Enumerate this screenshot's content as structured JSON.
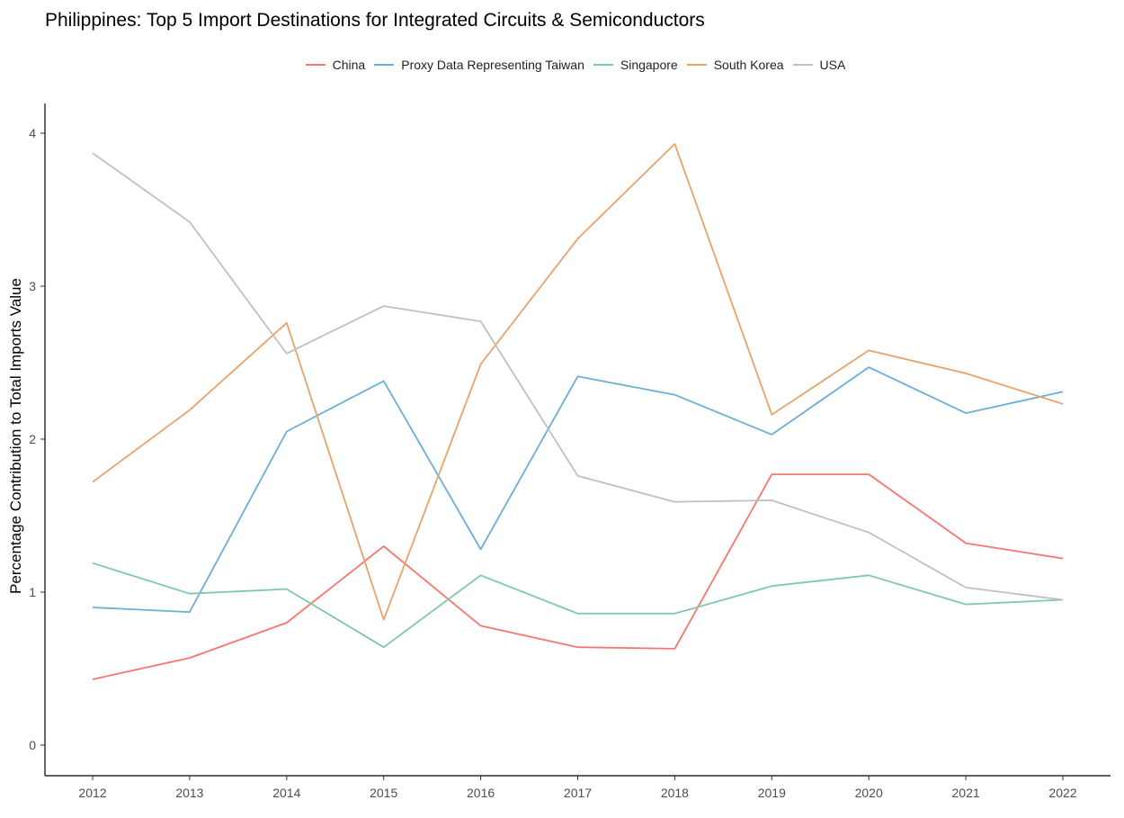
{
  "chart_data": {
    "type": "line",
    "title": "Philippines: Top 5 Import Destinations for Integrated Circuits & Semiconductors",
    "xlabel": "",
    "ylabel": "Percentage Contribution to Total Imports Value",
    "x": [
      "2012",
      "2013",
      "2014",
      "2015",
      "2016",
      "2017",
      "2018",
      "2019",
      "2020",
      "2021",
      "2022"
    ],
    "ylim": [
      -0.2,
      4.2
    ],
    "yticks": [
      0,
      1,
      2,
      3,
      4
    ],
    "grid": false,
    "legend_position": "top",
    "series": [
      {
        "name": "China",
        "color": "#F8766D",
        "values": [
          0.43,
          0.57,
          0.8,
          1.3,
          0.78,
          0.64,
          0.63,
          1.77,
          1.77,
          1.32,
          1.22
        ]
      },
      {
        "name": "Proxy Data Representing Taiwan",
        "color": "#6BAED6",
        "values": [
          0.9,
          0.87,
          2.05,
          2.38,
          1.28,
          2.41,
          2.29,
          2.03,
          2.47,
          2.17,
          2.31
        ]
      },
      {
        "name": "Singapore",
        "color": "#7FC8A9",
        "values": [
          1.19,
          0.99,
          1.02,
          0.64,
          1.11,
          0.86,
          0.86,
          1.04,
          1.11,
          0.92,
          0.95
        ]
      },
      {
        "name": "South Korea",
        "color": "#E8A26A",
        "values": [
          1.72,
          2.19,
          2.76,
          0.82,
          2.49,
          3.31,
          3.93,
          2.16,
          2.58,
          2.43,
          2.23
        ]
      },
      {
        "name": "USA",
        "color": "#C0C0C0",
        "values": [
          3.87,
          3.42,
          2.56,
          2.87,
          2.77,
          1.76,
          1.59,
          1.6,
          1.39,
          1.03,
          0.95
        ]
      }
    ]
  }
}
